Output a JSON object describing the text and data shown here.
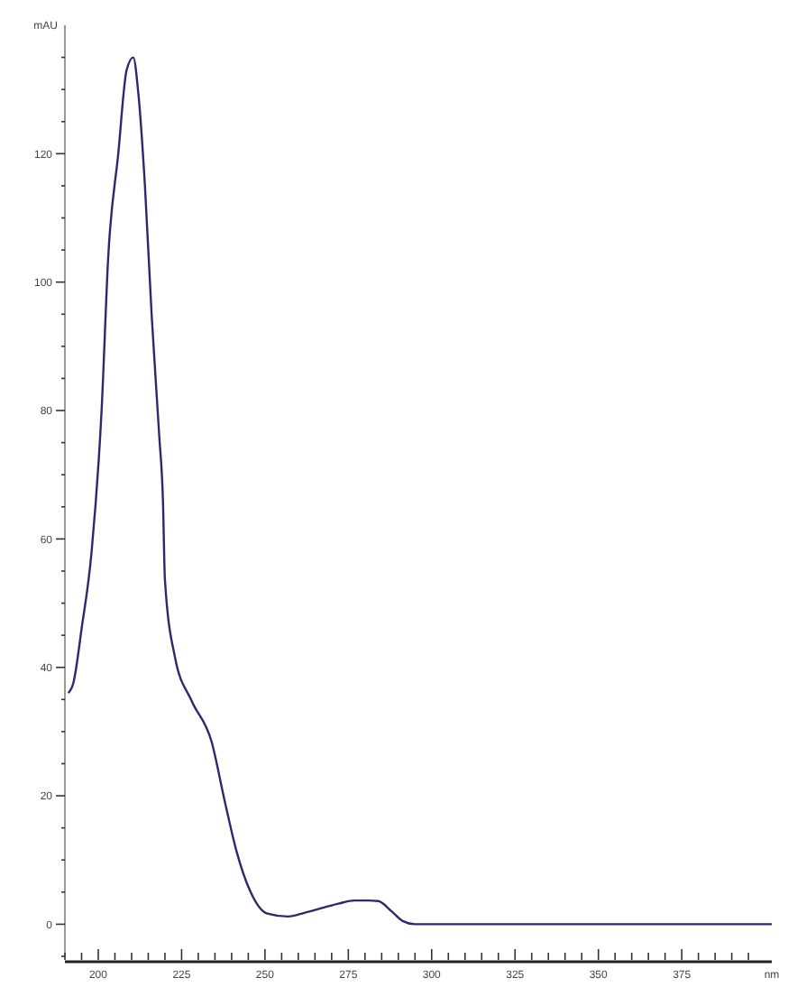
{
  "chart_data": {
    "type": "line",
    "xlabel": "nm",
    "ylabel": "mAU",
    "x": [
      191,
      192.5,
      195,
      198,
      201,
      203,
      206,
      208.5,
      210.5,
      212,
      214,
      216,
      218.3,
      219.4,
      220,
      223,
      228,
      234,
      238,
      241.4,
      245.7,
      250.5,
      257,
      262,
      267.7,
      272,
      276.9,
      281,
      284,
      288,
      291.3,
      295,
      320,
      350,
      380,
      402
    ],
    "series": [
      {
        "color": "#2b2b6b",
        "values": [
          36,
          37.5,
          46,
          58,
          80,
          104,
          120,
          133,
          135,
          129.5,
          115,
          95,
          76,
          66,
          53.6,
          41.6,
          34.8,
          28.4,
          19,
          11.5,
          5,
          1.7,
          1.2,
          1.8,
          2.6,
          3.2,
          3.7,
          3.7,
          3.6,
          2,
          0.5,
          0,
          0,
          0,
          0,
          0
        ]
      }
    ],
    "xlim": [
      190,
      402
    ],
    "ylim": [
      -5,
      140
    ],
    "xticks": [
      {
        "value": 190,
        "label": null
      },
      {
        "value": 195,
        "label": null
      },
      200,
      {
        "value": 205,
        "label": null
      },
      {
        "value": 210,
        "label": null
      },
      {
        "value": 215,
        "label": null
      },
      {
        "value": 220,
        "label": null
      },
      225,
      {
        "value": 230,
        "label": null
      },
      {
        "value": 235,
        "label": null
      },
      {
        "value": 240,
        "label": null
      },
      {
        "value": 245,
        "label": null
      },
      250,
      {
        "value": 255,
        "label": null
      },
      {
        "value": 260,
        "label": null
      },
      {
        "value": 265,
        "label": null
      },
      {
        "value": 270,
        "label": null
      },
      275,
      {
        "value": 280,
        "label": null
      },
      {
        "value": 285,
        "label": null
      },
      {
        "value": 290,
        "label": null
      },
      {
        "value": 295,
        "label": null
      },
      300,
      {
        "value": 305,
        "label": null
      },
      {
        "value": 310,
        "label": null
      },
      {
        "value": 315,
        "label": null
      },
      {
        "value": 320,
        "label": null
      },
      325,
      {
        "value": 330,
        "label": null
      },
      {
        "value": 335,
        "label": null
      },
      {
        "value": 340,
        "label": null
      },
      {
        "value": 345,
        "label": null
      },
      350,
      {
        "value": 355,
        "label": null
      },
      {
        "value": 360,
        "label": null
      },
      {
        "value": 365,
        "label": null
      },
      {
        "value": 370,
        "label": null
      },
      375,
      {
        "value": 380,
        "label": null
      },
      {
        "value": 385,
        "label": null
      },
      {
        "value": 390,
        "label": null
      },
      {
        "value": 395,
        "label": null
      }
    ],
    "yticks": [
      {
        "value": -5,
        "label": null
      },
      0,
      {
        "value": 5,
        "label": null
      },
      {
        "value": 10,
        "label": null
      },
      {
        "value": 15,
        "label": null
      },
      20,
      {
        "value": 25,
        "label": null
      },
      {
        "value": 30,
        "label": null
      },
      {
        "value": 35,
        "label": null
      },
      40,
      {
        "value": 45,
        "label": null
      },
      {
        "value": 50,
        "label": null
      },
      {
        "value": 55,
        "label": null
      },
      60,
      {
        "value": 65,
        "label": null
      },
      {
        "value": 70,
        "label": null
      },
      {
        "value": 75,
        "label": null
      },
      80,
      {
        "value": 85,
        "label": null
      },
      {
        "value": 90,
        "label": null
      },
      {
        "value": 95,
        "label": null
      },
      100,
      {
        "value": 105,
        "label": null
      },
      {
        "value": 110,
        "label": null
      },
      {
        "value": 115,
        "label": null
      },
      120,
      {
        "value": 125,
        "label": null
      },
      {
        "value": 130,
        "label": null
      },
      {
        "value": 135,
        "label": null
      }
    ],
    "grid": false,
    "marker": "none",
    "line_style": "solid"
  }
}
